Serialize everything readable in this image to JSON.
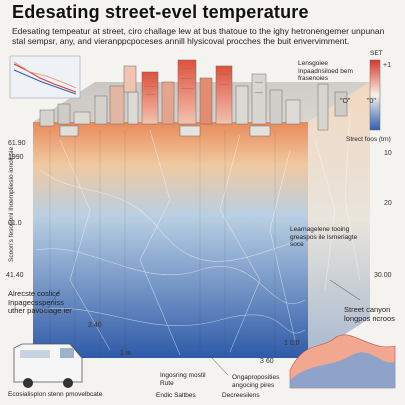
{
  "header": {
    "title": "Edesating street-evel temperature",
    "subtitle": "Edesating tempeatur at street, ciro challage lew at bus thatoue to the ighy hetronengemer unpunan stal sempsr, any, and vieranppcpoceses annill hlysicoval procches the buit envervimment."
  },
  "legend": {
    "label": "Lensgoiee Inpaadnsiloed bem frasenoies",
    "set_label": "SET",
    "ticks": [
      "+1",
      "\"0\"",
      "Strect foos (trn)"
    ],
    "colors": {
      "hot": "#d8352a",
      "mid": "#f6f1ea",
      "cold": "#2f5fb0"
    }
  },
  "annotations": {
    "hi_label": "\"O\"",
    "callout_box": "Learnagelene tooing greaspos ile Ismeriagte soce",
    "left_callout": "Alrecste coslice Inpagecsspeniss uther pavociage ier",
    "street_canyon": "Street canyon longpos ncroos",
    "bottom_left_1": "Ecosialisplon stenn pmovelbcate",
    "bottom_left_2": "Ingosring mostil Rute",
    "bottom_left_3": "Endic Saltbes",
    "bottom_mid": "Decreesilens",
    "bottom_right": "Ongaproposities angocing pires",
    "vertical_label": "Scoon's fesoeonl Ihoempliesio ionolusie"
  },
  "axis": {
    "left_ticks": [
      "61.90",
      "1990",
      "01.0",
      "41.40"
    ],
    "right_ticks": [
      "10",
      "20",
      "30.00"
    ],
    "bottom_ticks": [
      "2.40",
      "1 ix",
      "1 0.0",
      "3 60"
    ]
  },
  "icons": [
    "van-icon",
    "line-chart-icon",
    "heatmap-icon",
    "city-block-icon"
  ]
}
